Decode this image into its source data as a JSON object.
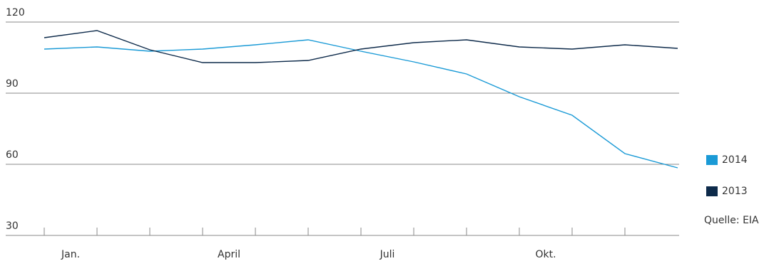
{
  "chart_data": {
    "type": "line",
    "x": [
      0,
      1,
      2,
      3,
      4,
      5,
      6,
      7,
      8,
      9,
      10,
      11,
      12
    ],
    "xlim": [
      0,
      12
    ],
    "xticks": [
      0,
      1,
      2,
      3,
      4,
      5,
      6,
      7,
      8,
      9,
      10,
      11
    ],
    "xlabels": [
      {
        "value": 0.5,
        "label": "Jan."
      },
      {
        "value": 3.5,
        "label": "April"
      },
      {
        "value": 6.5,
        "label": "Juli"
      },
      {
        "value": 9.5,
        "label": "Okt."
      }
    ],
    "ylim": [
      30,
      120
    ],
    "yticks": [
      30,
      60,
      90,
      120
    ],
    "grid": true,
    "series": [
      {
        "name": "2014",
        "color": "#1a9ad6",
        "values": [
          108.6,
          109.5,
          107.7,
          108.6,
          110.4,
          112.5,
          107.7,
          103.2,
          98.1,
          88.5,
          80.7,
          64.5,
          58.5
        ]
      },
      {
        "name": "2013",
        "color": "#0d2a4a",
        "values": [
          113.4,
          116.4,
          108.3,
          102.9,
          102.9,
          103.8,
          108.6,
          111.3,
          112.5,
          109.5,
          108.6,
          110.4,
          108.9
        ]
      }
    ],
    "source": "Quelle: EIA"
  }
}
